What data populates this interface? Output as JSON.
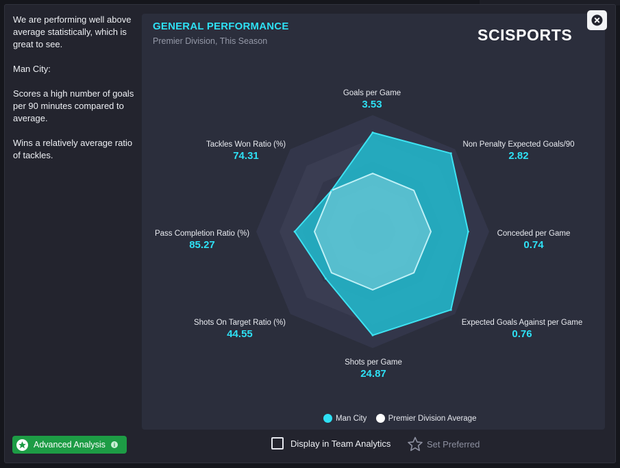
{
  "side_text": {
    "paragraphs": [
      "We are performing well above average statistically, which is great to see.",
      "Man City:",
      "Scores a high number of goals per 90 minutes compared to average.",
      "Wins a relatively average ratio of tackles."
    ]
  },
  "panel": {
    "title": "GENERAL PERFORMANCE",
    "subtitle": "Premier Division, This Season",
    "brand": "SCISPORTS"
  },
  "radar": {
    "metrics": [
      {
        "name": "Goals per Game",
        "value": "3.53",
        "team_level": 0.85,
        "avg_level": 0.5
      },
      {
        "name": "Non Penalty Expected Goals/90",
        "value": "2.82",
        "team_level": 0.95,
        "avg_level": 0.5
      },
      {
        "name": "Conceded per Game",
        "value": "0.74",
        "team_level": 0.82,
        "avg_level": 0.5
      },
      {
        "name": "Expected Goals Against per Game",
        "value": "0.76",
        "team_level": 0.95,
        "avg_level": 0.5
      },
      {
        "name": "Shots per Game",
        "value": "24.87",
        "team_level": 0.89,
        "avg_level": 0.5
      },
      {
        "name": "Shots On Target Ratio (%)",
        "value": "44.55",
        "team_level": 0.57,
        "avg_level": 0.5
      },
      {
        "name": "Pass Completion Ratio (%)",
        "value": "85.27",
        "team_level": 0.67,
        "avg_level": 0.5
      },
      {
        "name": "Tackles Won Ratio (%)",
        "value": "74.31",
        "team_level": 0.5,
        "avg_level": 0.5
      }
    ],
    "colors": {
      "team_fill": "#22b8cc",
      "team_stroke": "#3ee3f2",
      "avg_fill": "#9fdde6",
      "avg_stroke": "#bff0f6"
    }
  },
  "legend": {
    "team": "Man City",
    "team_color": "#2ee0f4",
    "avg": "Premier Division Average",
    "avg_color": "#ffffff"
  },
  "footer": {
    "advanced_label": "Advanced Analysis",
    "display_label": "Display in Team Analytics",
    "preferred_label": "Set Preferred"
  },
  "icons": {
    "close": "close-icon",
    "star": "star-icon",
    "info": "info-icon",
    "preferred": "star-outline-icon"
  }
}
